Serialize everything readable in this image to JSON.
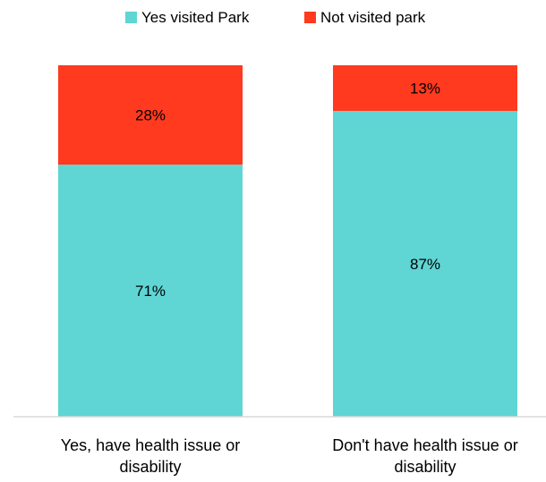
{
  "chart_data": {
    "type": "bar",
    "stacked": true,
    "normalized": true,
    "categories": [
      [
        "Yes, have health issue or",
        "disability"
      ],
      [
        "Don't have health issue or",
        "disability"
      ]
    ],
    "series": [
      {
        "name": "Yes visited Park",
        "values": [
          71,
          87
        ],
        "labels": [
          "71%",
          "87%"
        ],
        "color": "#5fd5d4"
      },
      {
        "name": "Not visited park",
        "values": [
          28,
          13
        ],
        "labels": [
          "28%",
          "13%"
        ],
        "color": "#ff3a1f"
      }
    ],
    "ylim": [
      0,
      100
    ],
    "grid": false,
    "legend_position": "top-center",
    "axis_color": "#d9d9d9"
  }
}
